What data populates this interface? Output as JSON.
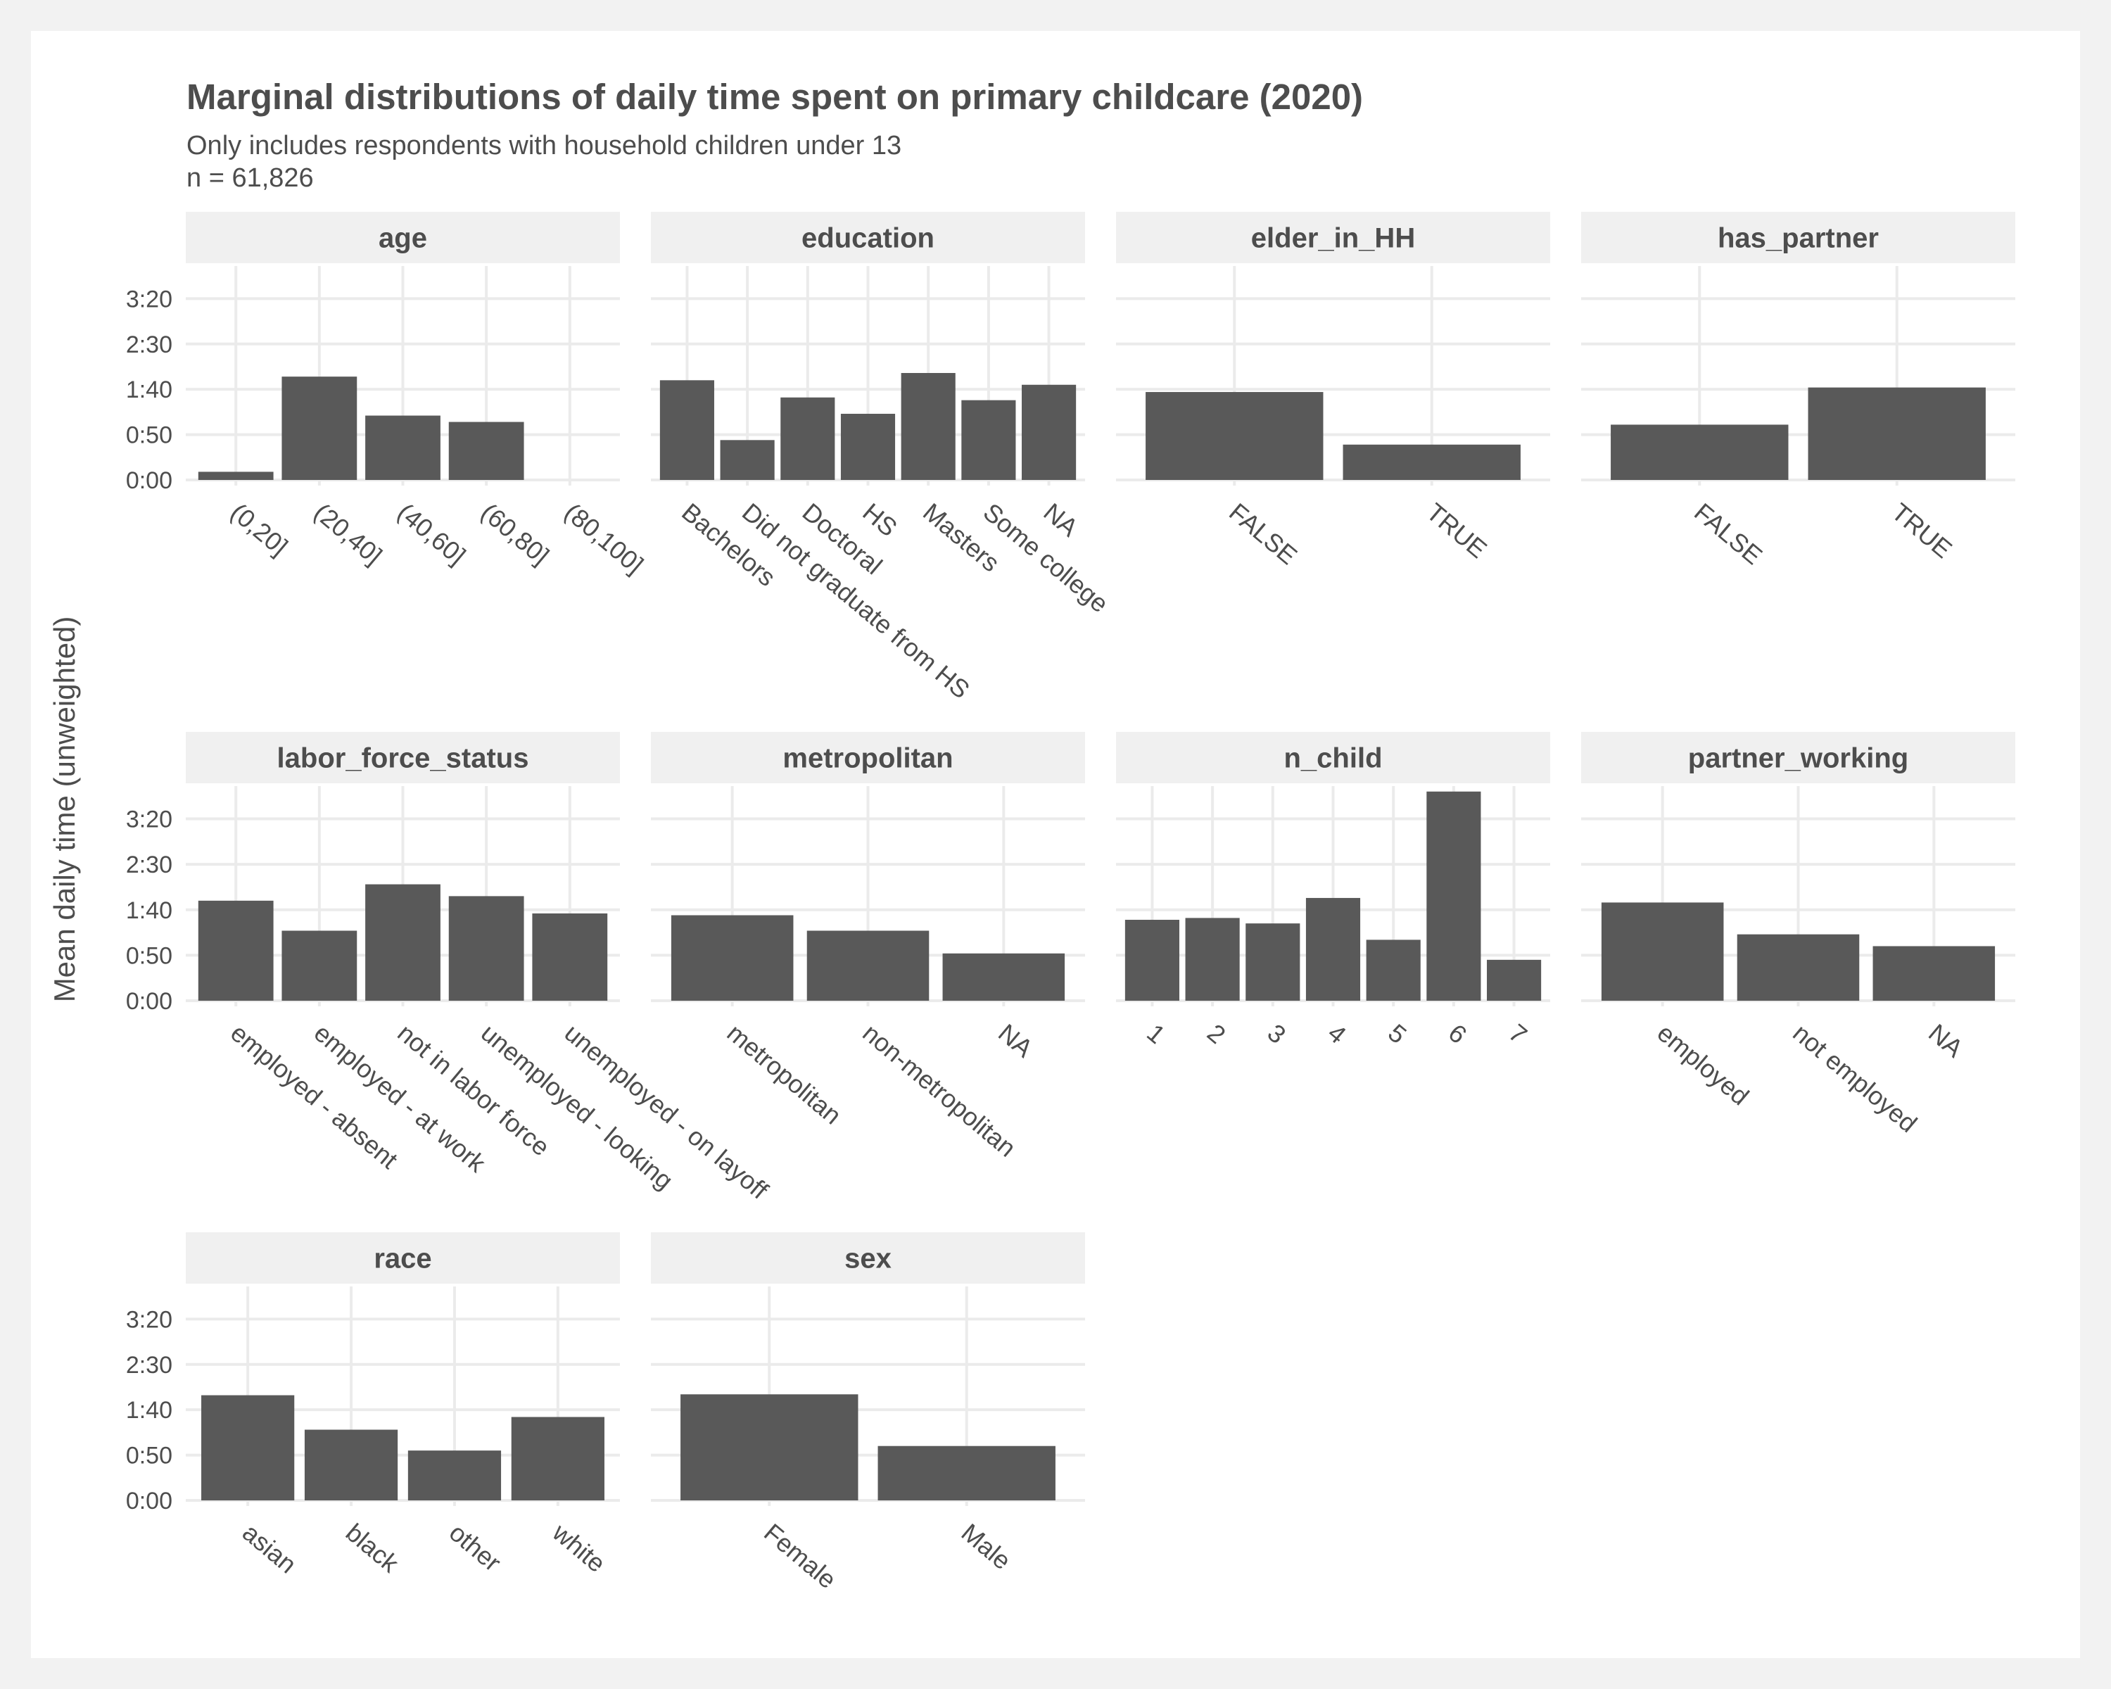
{
  "title": "Marginal distributions of daily time spent on primary childcare (2020)",
  "subtitle_line1": "Only includes respondents with household children under 13",
  "subtitle_line2": "n = 61,826",
  "ylabel": "Mean daily time (unweighted)",
  "colors": {
    "bar": "#595959",
    "strip": "#f0f0f0",
    "grid": "#ebebeb",
    "text": "#4d4d4d",
    "background": "#f2f2f2",
    "panel": "#ffffff"
  },
  "chart_data": {
    "type": "bar",
    "facet": "wrap",
    "value_unit": "minutes",
    "y_ticks": [
      0,
      50,
      100,
      150,
      200
    ],
    "y_tick_labels": [
      "0:00",
      "0:50",
      "1:40",
      "2:30",
      "3:20"
    ],
    "panels": [
      {
        "title": "age",
        "categories": [
          "(0,20]",
          "(20,40]",
          "(40,60]",
          "(60,80]",
          "(80,100]"
        ],
        "values": [
          9,
          114,
          71,
          64,
          0
        ]
      },
      {
        "title": "education",
        "categories": [
          "Bachelors",
          "Did not graduate from HS",
          "Doctoral",
          "HS",
          "Masters",
          "Some college",
          "NA"
        ],
        "values": [
          110,
          44,
          91,
          73,
          118,
          88,
          105
        ]
      },
      {
        "title": "elder_in_HH",
        "categories": [
          "FALSE",
          "TRUE"
        ],
        "values": [
          97,
          39
        ]
      },
      {
        "title": "has_partner",
        "categories": [
          "FALSE",
          "TRUE"
        ],
        "values": [
          61,
          102
        ]
      },
      {
        "title": "labor_force_status",
        "categories": [
          "employed - absent",
          "employed - at work",
          "not in labor force",
          "unemployed - looking",
          "unemployed - on layoff"
        ],
        "values": [
          110,
          77,
          128,
          115,
          96
        ]
      },
      {
        "title": "metropolitan",
        "categories": [
          "metropolitan",
          "non-metropolitan",
          "NA"
        ],
        "values": [
          94,
          77,
          52
        ]
      },
      {
        "title": "n_child",
        "categories": [
          "1",
          "2",
          "3",
          "4",
          "5",
          "6",
          "7"
        ],
        "values": [
          89,
          91,
          85,
          113,
          67,
          230,
          45
        ]
      },
      {
        "title": "partner_working",
        "categories": [
          "employed",
          "not employed",
          "NA"
        ],
        "values": [
          108,
          73,
          60
        ]
      },
      {
        "title": "race",
        "categories": [
          "asian",
          "black",
          "other",
          "white"
        ],
        "values": [
          116,
          78,
          55,
          92
        ]
      },
      {
        "title": "sex",
        "categories": [
          "Female",
          "Male"
        ],
        "values": [
          117,
          60
        ]
      }
    ]
  }
}
